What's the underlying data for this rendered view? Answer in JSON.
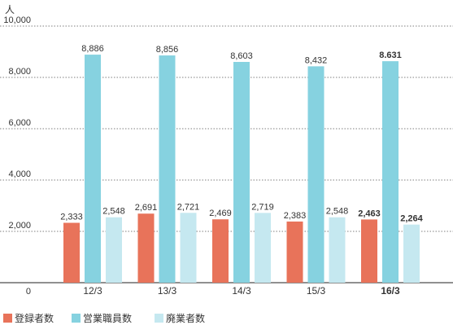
{
  "chart_data": {
    "type": "bar",
    "unit_label": "人",
    "categories": [
      "12/3",
      "13/3",
      "14/3",
      "15/3",
      "16/3"
    ],
    "highlight_index": 4,
    "y_ticks": [
      "10,000",
      "8,000",
      "6,000",
      "4,000",
      "2,000",
      "0"
    ],
    "y_tick_values": [
      10000,
      8000,
      6000,
      4000,
      2000,
      0
    ],
    "ylim": [
      0,
      10000
    ],
    "grid": true,
    "legend_position": "bottom-left",
    "series": [
      {
        "name": "登録者数",
        "color": "#e8735a",
        "values": [
          2333,
          2691,
          2469,
          2383,
          2463
        ],
        "labels": [
          "2,333",
          "2,691",
          "2,469",
          "2,383",
          "2,463"
        ]
      },
      {
        "name": "営業職員数",
        "color": "#86d2e0",
        "values": [
          8886,
          8856,
          8603,
          8432,
          8631
        ],
        "labels": [
          "8,886",
          "8,856",
          "8,603",
          "8,432",
          "8.631"
        ]
      },
      {
        "name": "廃業者数",
        "color": "#c5e8f0",
        "values": [
          2548,
          2721,
          2719,
          2548,
          2264
        ],
        "labels": [
          "2,548",
          "2,721",
          "2,719",
          "2,548",
          "2,264"
        ]
      }
    ]
  }
}
